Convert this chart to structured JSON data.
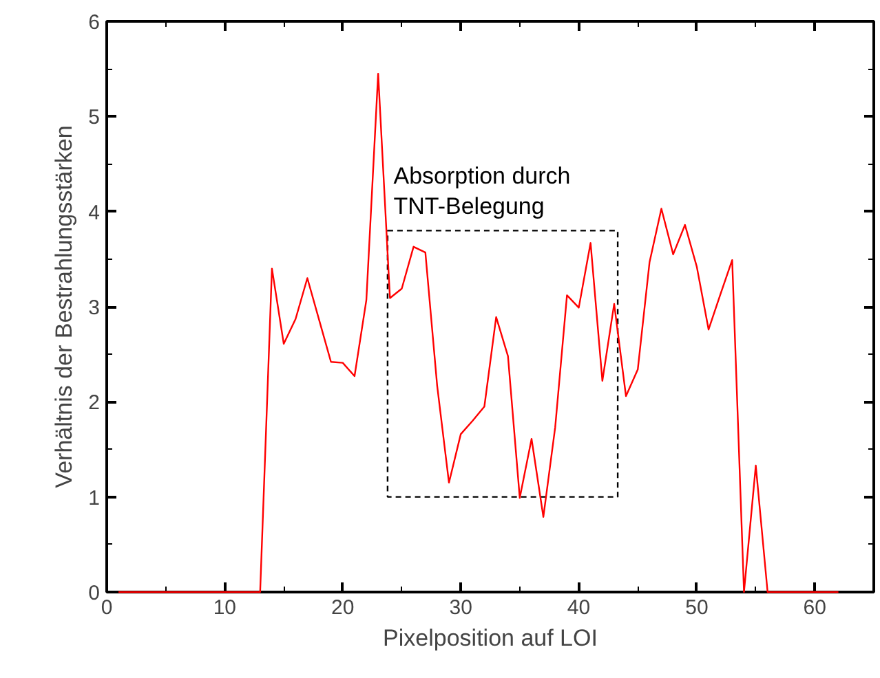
{
  "chart_data": {
    "type": "line",
    "xlabel": "Pixelposition auf LOI",
    "ylabel": "Verhältnis der Bestrahlungsstärken",
    "x": [
      1,
      2,
      3,
      4,
      5,
      6,
      7,
      8,
      9,
      10,
      11,
      12,
      13,
      14,
      15,
      16,
      17,
      18,
      19,
      20,
      21,
      22,
      23,
      24,
      25,
      26,
      27,
      28,
      29,
      30,
      31,
      32,
      33,
      34,
      35,
      36,
      37,
      38,
      39,
      40,
      41,
      42,
      43,
      44,
      45,
      46,
      47,
      48,
      49,
      50,
      51,
      52,
      53,
      54,
      55,
      56,
      57,
      58,
      59,
      60,
      61,
      62
    ],
    "series": [
      {
        "color": "#ff0000",
        "values": [
          0,
          0,
          0,
          0,
          0,
          0,
          0,
          0,
          0,
          0,
          0,
          0,
          0,
          3.4,
          2.61,
          2.87,
          3.3,
          2.86,
          2.42,
          2.41,
          2.27,
          3.07,
          5.45,
          3.09,
          3.19,
          3.63,
          3.57,
          2.17,
          1.15,
          1.66,
          1.8,
          1.95,
          2.89,
          2.48,
          0.99,
          1.61,
          0.79,
          1.73,
          3.12,
          2.99,
          3.67,
          2.22,
          3.03,
          2.06,
          2.34,
          3.47,
          4.03,
          3.55,
          3.86,
          3.42,
          2.76,
          3.13,
          3.49,
          0,
          1.33,
          0,
          0,
          0,
          0,
          0,
          0,
          0
        ]
      }
    ],
    "xlim": [
      0,
      65
    ],
    "ylim": [
      0,
      6
    ],
    "xticks": [
      0,
      10,
      20,
      30,
      40,
      50,
      60
    ],
    "yticks": [
      0,
      1,
      2,
      3,
      4,
      5,
      6
    ],
    "grid": false,
    "marker": "none",
    "line_style": "solid",
    "annotations": [
      {
        "text": "Absorption durch\nTNT-Belegung",
        "x": 24,
        "y": 3.8
      }
    ]
  }
}
